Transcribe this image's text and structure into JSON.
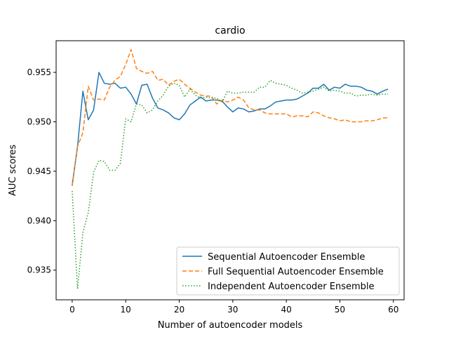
{
  "chart_data": {
    "type": "line",
    "title": "cardio",
    "xlabel": "Number of autoencoder models",
    "ylabel": "AUC scores",
    "xlim": [
      -3,
      62
    ],
    "ylim": [
      0.932,
      0.9582
    ],
    "xticks": [
      0,
      10,
      20,
      30,
      40,
      50,
      60
    ],
    "yticks": [
      0.935,
      0.94,
      0.945,
      0.95,
      0.955
    ],
    "ytick_labels": [
      "0.935",
      "0.940",
      "0.945",
      "0.950",
      "0.955"
    ],
    "grid": false,
    "legend_position": "lower-right",
    "series": [
      {
        "name": "Sequential Autoencoder Ensemble",
        "color": "#1f77b4",
        "dash": "solid",
        "x": [
          0,
          1,
          2,
          3,
          4,
          5,
          6,
          7,
          8,
          9,
          10,
          11,
          12,
          13,
          14,
          15,
          16,
          17,
          18,
          19,
          20,
          21,
          22,
          23,
          24,
          25,
          26,
          27,
          28,
          29,
          30,
          31,
          32,
          33,
          34,
          35,
          36,
          37,
          38,
          39,
          40,
          41,
          42,
          43,
          44,
          45,
          46,
          47,
          48,
          49,
          50,
          51,
          52,
          53,
          54,
          55,
          56,
          57,
          58,
          59
        ],
        "y": [
          0.9436,
          0.9475,
          0.9531,
          0.9502,
          0.9512,
          0.955,
          0.9539,
          0.9538,
          0.9539,
          0.9534,
          0.9535,
          0.9528,
          0.9518,
          0.9537,
          0.9538,
          0.9524,
          0.9514,
          0.9512,
          0.9509,
          0.9504,
          0.9502,
          0.9508,
          0.9517,
          0.9521,
          0.9525,
          0.9521,
          0.9522,
          0.9522,
          0.9521,
          0.9515,
          0.951,
          0.9514,
          0.9513,
          0.951,
          0.9511,
          0.9513,
          0.9513,
          0.9516,
          0.952,
          0.9521,
          0.9522,
          0.9522,
          0.9523,
          0.9526,
          0.9529,
          0.9534,
          0.9534,
          0.9538,
          0.9532,
          0.9535,
          0.9534,
          0.9538,
          0.9536,
          0.9536,
          0.9535,
          0.9532,
          0.9531,
          0.9528,
          0.9531,
          0.9533
        ]
      },
      {
        "name": "Full Sequential Autoencoder Ensemble",
        "color": "#ff7f0e",
        "dash": "dashed",
        "x": [
          0,
          1,
          2,
          3,
          4,
          5,
          6,
          7,
          8,
          9,
          10,
          11,
          12,
          13,
          14,
          15,
          16,
          17,
          18,
          19,
          20,
          21,
          22,
          23,
          24,
          25,
          26,
          27,
          28,
          29,
          30,
          31,
          32,
          33,
          34,
          35,
          36,
          37,
          38,
          39,
          40,
          41,
          42,
          43,
          44,
          45,
          46,
          47,
          48,
          49,
          50,
          51,
          52,
          53,
          54,
          55,
          56,
          57,
          58,
          59
        ],
        "y": [
          0.9435,
          0.9475,
          0.9489,
          0.9536,
          0.9522,
          0.9523,
          0.9522,
          0.9535,
          0.9542,
          0.9546,
          0.9558,
          0.9573,
          0.9554,
          0.9551,
          0.9549,
          0.9551,
          0.9542,
          0.9543,
          0.9537,
          0.9541,
          0.9543,
          0.9538,
          0.9534,
          0.953,
          0.9527,
          0.9526,
          0.9526,
          0.9518,
          0.9522,
          0.952,
          0.9522,
          0.9525,
          0.9522,
          0.9514,
          0.9512,
          0.9512,
          0.9509,
          0.9508,
          0.9508,
          0.9508,
          0.9508,
          0.9505,
          0.9506,
          0.9506,
          0.9505,
          0.951,
          0.9509,
          0.9506,
          0.9504,
          0.9503,
          0.9501,
          0.9502,
          0.95,
          0.95,
          0.95,
          0.9501,
          0.9501,
          0.9502,
          0.9504,
          0.9504
        ]
      },
      {
        "name": "Independent Autoencoder Ensemble",
        "color": "#2ca02c",
        "dash": "dotted",
        "x": [
          0,
          1,
          2,
          3,
          4,
          5,
          6,
          7,
          8,
          9,
          10,
          11,
          12,
          13,
          14,
          15,
          16,
          17,
          18,
          19,
          20,
          21,
          22,
          23,
          24,
          25,
          26,
          27,
          28,
          29,
          30,
          31,
          32,
          33,
          34,
          35,
          36,
          37,
          38,
          39,
          40,
          41,
          42,
          43,
          44,
          45,
          46,
          47,
          48,
          49,
          50,
          51,
          52,
          53,
          54,
          55,
          56,
          57,
          58,
          59
        ],
        "y": [
          0.943,
          0.9331,
          0.9388,
          0.9408,
          0.9449,
          0.9461,
          0.946,
          0.9451,
          0.9451,
          0.9458,
          0.9503,
          0.95,
          0.9518,
          0.9517,
          0.9509,
          0.9512,
          0.9521,
          0.9527,
          0.9536,
          0.9539,
          0.9537,
          0.9525,
          0.9533,
          0.9527,
          0.9524,
          0.9525,
          0.9524,
          0.9524,
          0.952,
          0.9531,
          0.9529,
          0.9529,
          0.953,
          0.953,
          0.953,
          0.9535,
          0.9535,
          0.9542,
          0.9539,
          0.9538,
          0.9537,
          0.9534,
          0.9532,
          0.9529,
          0.953,
          0.9531,
          0.9533,
          0.9535,
          0.9531,
          0.9532,
          0.9531,
          0.9529,
          0.9529,
          0.9526,
          0.9527,
          0.9527,
          0.9528,
          0.9527,
          0.9528,
          0.9528
        ]
      }
    ]
  }
}
